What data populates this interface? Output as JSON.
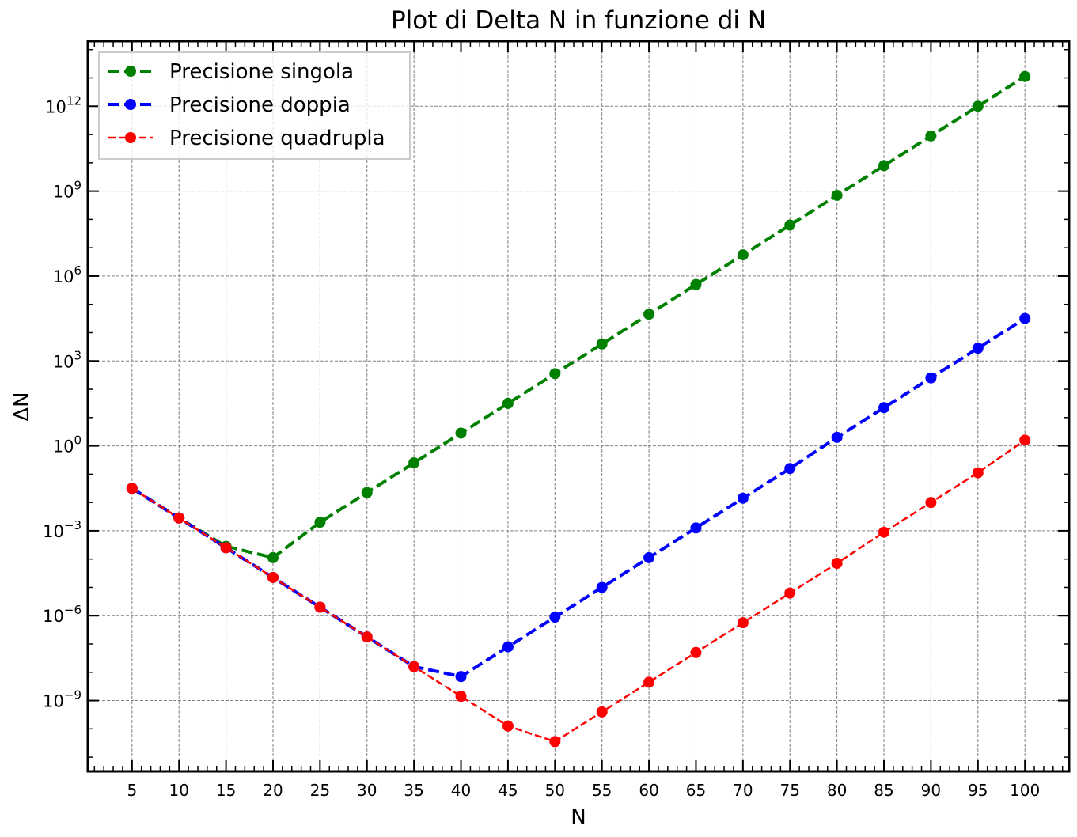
{
  "chart_data": {
    "type": "line",
    "title": "Plot di Delta N in funzione di N",
    "xlabel": "N",
    "ylabel": "ΔN",
    "x": [
      5,
      10,
      15,
      20,
      25,
      30,
      35,
      40,
      45,
      50,
      55,
      60,
      65,
      70,
      75,
      80,
      85,
      90,
      95,
      100
    ],
    "x_ticks": [
      "5",
      "10",
      "15",
      "20",
      "25",
      "30",
      "35",
      "40",
      "45",
      "50",
      "55",
      "60",
      "65",
      "70",
      "75",
      "80",
      "85",
      "90",
      "95",
      "100"
    ],
    "xlim": [
      0.3,
      104.7
    ],
    "yscale": "log",
    "ylim_log10": [
      -11.5,
      14.3
    ],
    "y_ticks": [
      {
        "log10": 12,
        "mant": "10",
        "exp": "12"
      },
      {
        "log10": 9,
        "mant": "10",
        "exp": "9"
      },
      {
        "log10": 6,
        "mant": "10",
        "exp": "6"
      },
      {
        "log10": 3,
        "mant": "10",
        "exp": "3"
      },
      {
        "log10": 0,
        "mant": "10",
        "exp": "0"
      },
      {
        "log10": -3,
        "mant": "10",
        "exp": "−3"
      },
      {
        "log10": -6,
        "mant": "10",
        "exp": "−6"
      },
      {
        "log10": -9,
        "mant": "10",
        "exp": "−9"
      }
    ],
    "grid": true,
    "legend_position": "top-left",
    "series": [
      {
        "name": "Precisione singola",
        "color": "#008000",
        "line_style": "dashed",
        "log10_y": [
          -1.5,
          -2.55,
          -3.55,
          -3.95,
          -2.7,
          -1.65,
          -0.6,
          0.45,
          1.5,
          2.55,
          3.6,
          4.65,
          5.7,
          6.75,
          7.8,
          8.85,
          9.9,
          10.95,
          12.0,
          13.05
        ]
      },
      {
        "name": "Precisione doppia",
        "color": "#0000ff",
        "line_style": "dashed",
        "log10_y": [
          -1.5,
          -2.55,
          -3.6,
          -4.65,
          -5.7,
          -6.75,
          -7.8,
          -8.15,
          -7.1,
          -6.05,
          -5.0,
          -3.95,
          -2.9,
          -1.85,
          -0.8,
          0.3,
          1.35,
          2.4,
          3.45,
          4.5
        ]
      },
      {
        "name": "Precisione quadrupla",
        "color": "#ff0000",
        "line_style": "dashed-thin",
        "log10_y": [
          -1.5,
          -2.55,
          -3.6,
          -4.65,
          -5.7,
          -6.75,
          -7.8,
          -8.85,
          -9.9,
          -10.45,
          -9.4,
          -8.35,
          -7.3,
          -6.25,
          -5.2,
          -4.15,
          -3.05,
          -2.0,
          -0.95,
          0.2
        ]
      }
    ]
  }
}
